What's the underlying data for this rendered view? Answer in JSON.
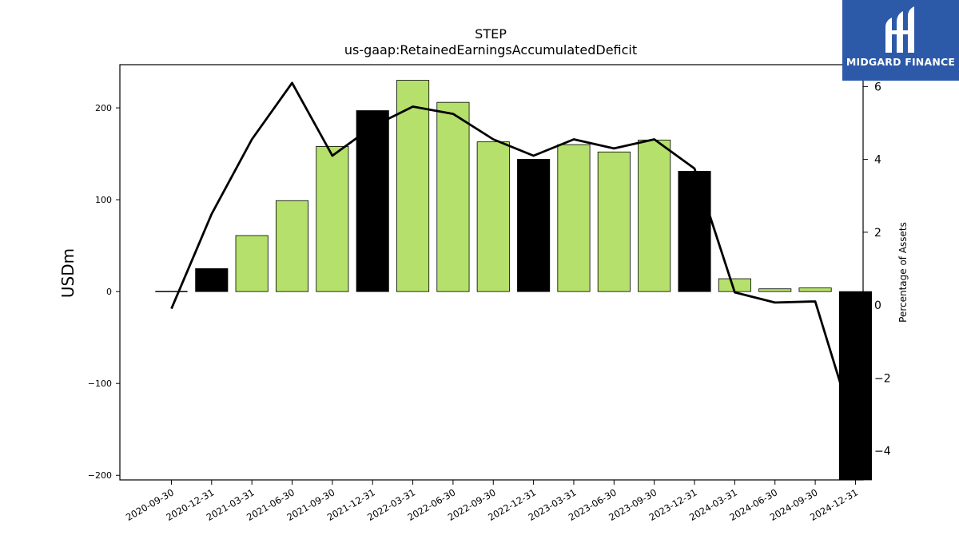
{
  "chart_data": {
    "type": "bar",
    "title": "STEP",
    "subtitle": "us-gaap:RetainedEarningsAccumulatedDeficit",
    "ylabel": "USDm",
    "ylabel_right": "Percentage of Assets",
    "categories": [
      "2020-09-30",
      "2020-12-31",
      "2021-03-31",
      "2021-06-30",
      "2021-09-30",
      "2021-12-31",
      "2022-03-31",
      "2022-06-30",
      "2022-09-30",
      "2022-12-31",
      "2023-03-31",
      "2023-06-30",
      "2023-09-30",
      "2023-12-31",
      "2024-03-31",
      "2024-06-30",
      "2024-09-30",
      "2024-12-31"
    ],
    "ylim": [
      -205,
      247
    ],
    "ylim_right": [
      -4.8,
      6.6
    ],
    "yticks": [
      -200,
      -100,
      0,
      100,
      200
    ],
    "yticks_right": [
      -4,
      -2,
      0,
      2,
      4,
      6
    ],
    "grid": false,
    "series": [
      {
        "kind": "bar",
        "values": [
          0,
          25,
          61,
          99,
          158,
          197,
          230,
          206,
          163,
          144,
          160,
          152,
          165,
          131,
          14,
          3,
          4,
          -210
        ],
        "fills": [
          "#000000",
          "#000000",
          "#b5e06b",
          "#b5e06b",
          "#b5e06b",
          "#000000",
          "#b5e06b",
          "#b5e06b",
          "#b5e06b",
          "#000000",
          "#b5e06b",
          "#b5e06b",
          "#b5e06b",
          "#000000",
          "#b5e06b",
          "#b5e06b",
          "#b5e06b",
          "#000000"
        ]
      },
      {
        "kind": "line",
        "axis": "right",
        "color": "#000000",
        "values": [
          -0.1,
          2.5,
          4.55,
          6.1,
          4.1,
          4.9,
          5.45,
          5.25,
          4.55,
          4.1,
          4.55,
          4.3,
          4.55,
          3.75,
          0.35,
          0.07,
          0.1,
          -3.5
        ]
      }
    ]
  },
  "logo": {
    "text": "MIDGARD FINANCE",
    "background": "#2c5aa8"
  }
}
